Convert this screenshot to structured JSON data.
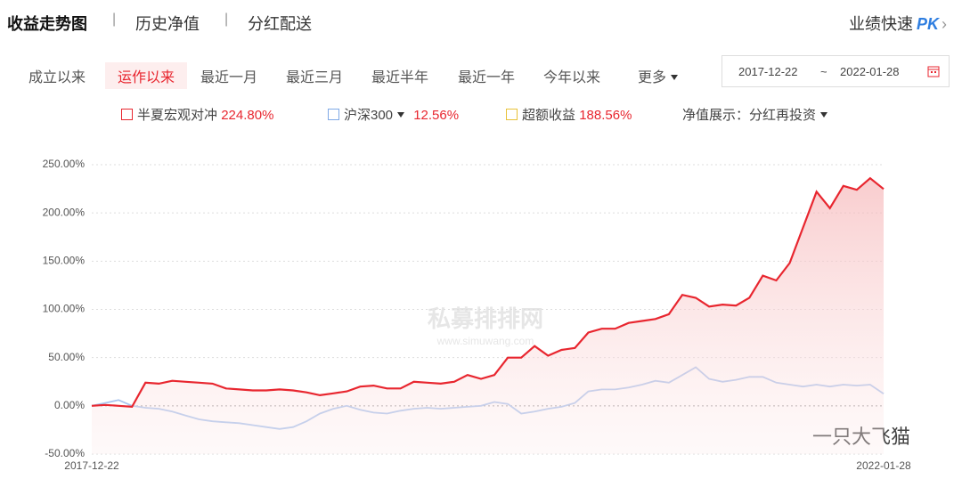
{
  "tabs": {
    "items": [
      "收益走势图",
      "历史净值",
      "分红配送"
    ],
    "pk_label": "业绩快速",
    "pk": "PK"
  },
  "periods": {
    "items": [
      "成立以来",
      "运作以来",
      "最近一月",
      "最近三月",
      "最近半年",
      "最近一年",
      "今年以来"
    ],
    "more": "更多",
    "date_from": "2017-12-22",
    "date_sep": "~",
    "date_to": "2022-01-28"
  },
  "legend": {
    "items": [
      {
        "name": "半夏宏观对冲",
        "value": "224.80%"
      },
      {
        "name": "沪深300",
        "value": "12.56%"
      },
      {
        "name": "超额收益",
        "value": "188.56%"
      }
    ],
    "display_label": "净值展示：分红再投资"
  },
  "watermark": {
    "name": "私募排排网",
    "url": "www.simuwang.com",
    "account": "一只大飞猫"
  },
  "chart_data": {
    "type": "line",
    "categories": [
      "2017-12-22",
      null,
      null,
      null,
      null,
      null,
      null,
      null,
      null,
      null,
      null,
      null,
      null,
      null,
      null,
      null,
      null,
      null,
      null,
      null,
      null,
      null,
      null,
      null,
      null,
      null,
      null,
      null,
      null,
      null,
      null,
      null,
      null,
      null,
      null,
      null,
      null,
      null,
      null,
      null,
      null,
      null,
      null,
      null,
      null,
      null,
      null,
      null,
      null,
      null,
      null,
      null,
      null,
      null,
      null,
      null,
      null,
      null,
      null,
      "2022-01-28"
    ],
    "series": [
      {
        "name": "半夏宏观对冲",
        "color": "#e8262f",
        "values": [
          0,
          1,
          0,
          -1,
          24,
          23,
          26,
          25,
          24,
          23,
          18,
          17,
          16,
          16,
          17,
          16,
          14,
          11,
          13,
          15,
          20,
          21,
          18,
          18,
          25,
          24,
          23,
          25,
          32,
          28,
          32,
          50,
          50,
          62,
          52,
          58,
          60,
          76,
          80,
          80,
          86,
          88,
          90,
          95,
          115,
          112,
          103,
          105,
          104,
          112,
          135,
          130,
          148,
          185,
          222,
          205,
          228,
          224,
          236,
          224.8
        ]
      },
      {
        "name": "沪深300",
        "color": "#a9c4ee",
        "values": [
          0,
          3,
          6,
          0,
          -2,
          -3,
          -6,
          -10,
          -14,
          -16,
          -17,
          -18,
          -20,
          -22,
          -24,
          -22,
          -16,
          -8,
          -3,
          0,
          -4,
          -7,
          -8,
          -5,
          -3,
          -2,
          -3,
          -2,
          -1,
          0,
          4,
          2,
          -8,
          -6,
          -3,
          -1,
          3,
          15,
          17,
          17,
          19,
          22,
          26,
          24,
          32,
          40,
          28,
          25,
          27,
          30,
          30,
          24,
          22,
          20,
          22,
          20,
          22,
          21,
          22,
          12.56
        ]
      }
    ],
    "ylim": [
      -50,
      250
    ],
    "yticks": [
      {
        "value": -50,
        "label": "-50.00%"
      },
      {
        "value": 0,
        "label": "0.00%"
      },
      {
        "value": 50,
        "label": "50.00%"
      },
      {
        "value": 100,
        "label": "100.00%"
      },
      {
        "value": 150,
        "label": "150.00%"
      },
      {
        "value": 200,
        "label": "200.00%"
      },
      {
        "value": 250,
        "label": "250.00%"
      }
    ],
    "grid": true
  }
}
